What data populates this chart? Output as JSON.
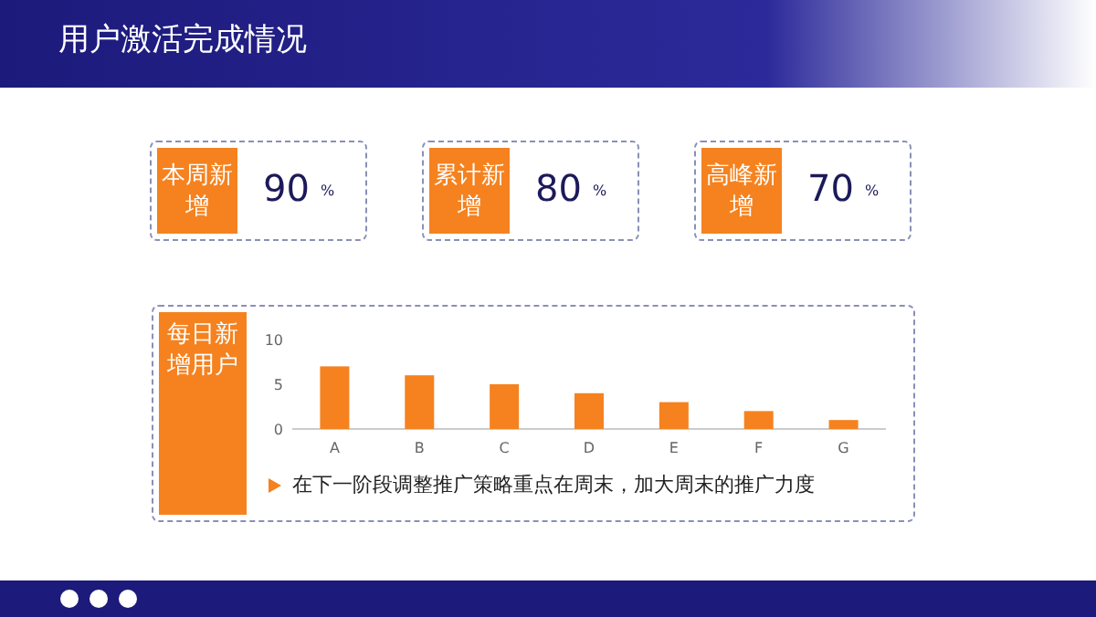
{
  "chart_data": [
    {
      "type": "other",
      "title": "用户激活完成情况",
      "categories": [
        "本周新增",
        "累计新增",
        "高峰新增"
      ],
      "values": [
        90,
        80,
        70
      ],
      "annotations": [
        "%"
      ],
      "color": "#f5821f",
      "data_labels": true
    },
    {
      "type": "bar",
      "title": "每日新增用户",
      "categories": [
        "A",
        "B",
        "C",
        "D",
        "E",
        "F",
        "G"
      ],
      "values": [
        7,
        6,
        5,
        4,
        3,
        2,
        1
      ],
      "color": "#f5821f",
      "ylim": [
        0,
        10
      ],
      "yticks": [
        0,
        5,
        10
      ],
      "grid": false,
      "annotations": [
        "在下一阶段调整推广策略重点在周末，加大周末的推广力度"
      ]
    }
  ]
}
